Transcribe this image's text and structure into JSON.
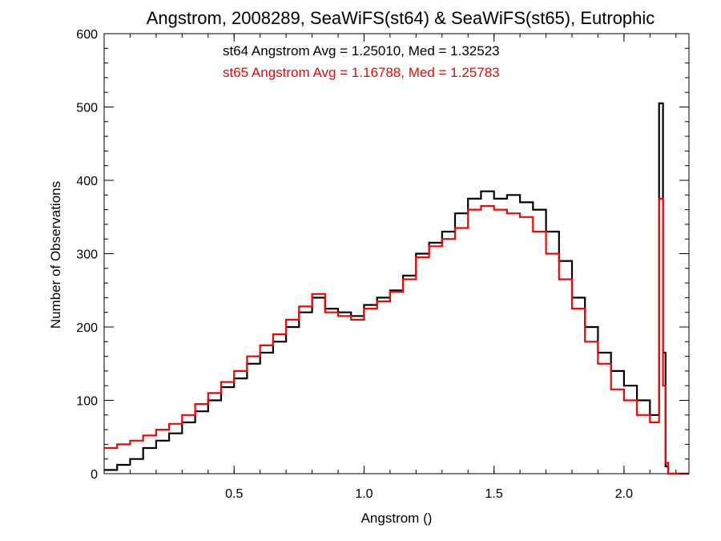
{
  "chart_data": {
    "type": "line",
    "step": true,
    "title": "Angstrom, 2008289, SeaWiFS(st64) & SeaWiFS(st65), Eutrophic",
    "xlabel": "Angstrom ()",
    "ylabel": "Number of Observations",
    "xlim": [
      0.0,
      2.25
    ],
    "ylim": [
      0,
      600
    ],
    "xticks": [
      "0.5",
      "1.0",
      "1.5",
      "2.0"
    ],
    "xtick_values": [
      0.5,
      1.0,
      1.5,
      2.0
    ],
    "yticks": [
      "0",
      "100",
      "200",
      "300",
      "400",
      "500",
      "600"
    ],
    "ytick_values": [
      0,
      100,
      200,
      300,
      400,
      500,
      600
    ],
    "grid": false,
    "annotations": [
      {
        "text": "st64 Angstrom Avg = 1.25010, Med = 1.32523",
        "color": "#000000"
      },
      {
        "text": "st65 Angstrom Avg = 1.16788, Med = 1.25783",
        "color": "#ff0000"
      }
    ],
    "series": [
      {
        "color": "#000000",
        "points": [
          [
            0.0,
            5
          ],
          [
            0.05,
            12
          ],
          [
            0.1,
            20
          ],
          [
            0.15,
            35
          ],
          [
            0.2,
            45
          ],
          [
            0.25,
            55
          ],
          [
            0.3,
            70
          ],
          [
            0.35,
            85
          ],
          [
            0.4,
            100
          ],
          [
            0.45,
            118
          ],
          [
            0.5,
            130
          ],
          [
            0.55,
            150
          ],
          [
            0.6,
            165
          ],
          [
            0.65,
            180
          ],
          [
            0.7,
            200
          ],
          [
            0.75,
            220
          ],
          [
            0.8,
            240
          ],
          [
            0.85,
            225
          ],
          [
            0.9,
            220
          ],
          [
            0.95,
            215
          ],
          [
            1.0,
            230
          ],
          [
            1.05,
            240
          ],
          [
            1.1,
            250
          ],
          [
            1.15,
            270
          ],
          [
            1.2,
            300
          ],
          [
            1.25,
            315
          ],
          [
            1.3,
            330
          ],
          [
            1.35,
            355
          ],
          [
            1.4,
            375
          ],
          [
            1.45,
            385
          ],
          [
            1.5,
            375
          ],
          [
            1.55,
            380
          ],
          [
            1.6,
            370
          ],
          [
            1.65,
            360
          ],
          [
            1.7,
            330
          ],
          [
            1.75,
            290
          ],
          [
            1.8,
            240
          ],
          [
            1.85,
            200
          ],
          [
            1.9,
            165
          ],
          [
            1.95,
            140
          ],
          [
            2.0,
            120
          ],
          [
            2.05,
            100
          ],
          [
            2.1,
            80
          ],
          [
            2.135,
            505
          ],
          [
            2.15,
            165
          ],
          [
            2.16,
            10
          ],
          [
            2.17,
            0
          ],
          [
            2.25,
            0
          ]
        ]
      },
      {
        "color": "#ff0000",
        "points": [
          [
            0.0,
            35
          ],
          [
            0.05,
            40
          ],
          [
            0.1,
            45
          ],
          [
            0.15,
            52
          ],
          [
            0.2,
            60
          ],
          [
            0.25,
            68
          ],
          [
            0.3,
            80
          ],
          [
            0.35,
            95
          ],
          [
            0.4,
            110
          ],
          [
            0.45,
            125
          ],
          [
            0.5,
            140
          ],
          [
            0.55,
            160
          ],
          [
            0.6,
            175
          ],
          [
            0.65,
            190
          ],
          [
            0.7,
            210
          ],
          [
            0.75,
            228
          ],
          [
            0.8,
            245
          ],
          [
            0.85,
            220
          ],
          [
            0.9,
            215
          ],
          [
            0.95,
            210
          ],
          [
            1.0,
            225
          ],
          [
            1.05,
            235
          ],
          [
            1.1,
            248
          ],
          [
            1.15,
            265
          ],
          [
            1.2,
            295
          ],
          [
            1.25,
            310
          ],
          [
            1.3,
            320
          ],
          [
            1.35,
            335
          ],
          [
            1.4,
            360
          ],
          [
            1.45,
            365
          ],
          [
            1.5,
            360
          ],
          [
            1.55,
            355
          ],
          [
            1.6,
            350
          ],
          [
            1.65,
            330
          ],
          [
            1.7,
            300
          ],
          [
            1.75,
            265
          ],
          [
            1.8,
            225
          ],
          [
            1.85,
            180
          ],
          [
            1.9,
            150
          ],
          [
            1.95,
            115
          ],
          [
            2.0,
            100
          ],
          [
            2.05,
            80
          ],
          [
            2.1,
            70
          ],
          [
            2.135,
            375
          ],
          [
            2.15,
            120
          ],
          [
            2.16,
            15
          ],
          [
            2.17,
            0
          ],
          [
            2.25,
            0
          ]
        ]
      }
    ]
  }
}
